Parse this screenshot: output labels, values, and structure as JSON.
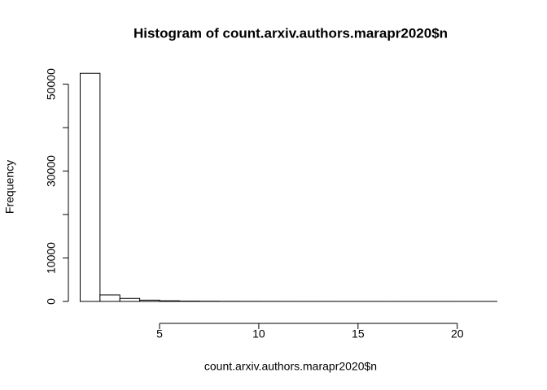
{
  "chart_data": {
    "type": "histogram",
    "title": "Histogram of count.arxiv.authors.marapr2020$n",
    "x_label": "count.arxiv.authors.marapr2020$n",
    "y_label": "Frequency",
    "bins": [
      1,
      2,
      3,
      4,
      5,
      6,
      7,
      8,
      9,
      10,
      11,
      12,
      13,
      14,
      15,
      16,
      17,
      18,
      19,
      20,
      21,
      22
    ],
    "counts": [
      52500,
      1500,
      700,
      300,
      150,
      80,
      50,
      30,
      20,
      15,
      10,
      8,
      6,
      5,
      4,
      3,
      3,
      2,
      2,
      1,
      1
    ],
    "color": "#ffffff",
    "xlim": [
      0.16,
      22.84
    ],
    "ylim": [
      0,
      54600
    ],
    "xticks": [
      5,
      10,
      15,
      20
    ],
    "yticks": [
      0,
      10000,
      {
        "value": 20000,
        "label": null
      },
      30000,
      {
        "value": 40000,
        "label": null
      },
      50000
    ]
  }
}
